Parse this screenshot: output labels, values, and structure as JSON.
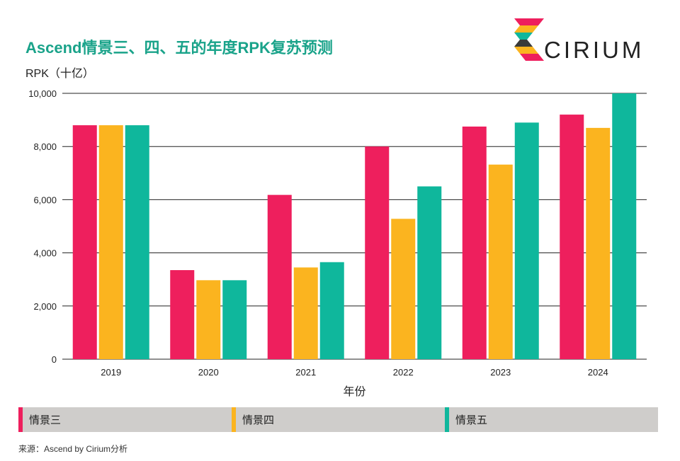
{
  "title": "Ascend情景三、四、五的年度RPK复苏预测",
  "unit_label": "RPK（十亿）",
  "logo": {
    "brand": "CIRIUM",
    "icon": "cirium-logo-icon"
  },
  "source": "来源：Ascend by Cirium分析",
  "colors": {
    "scenario3": "#ee1f5d",
    "scenario4": "#fbb41f",
    "scenario5": "#0fb79c",
    "title": "#1aa38a",
    "legend_bg": "#cfcdcb"
  },
  "chart_data": {
    "type": "bar",
    "title": "Ascend情景三、四、五的年度RPK复苏预测",
    "xlabel": "年份",
    "ylabel": "RPK（十亿）",
    "categories": [
      "2019",
      "2020",
      "2021",
      "2022",
      "2023",
      "2024"
    ],
    "ylim": [
      0,
      10000
    ],
    "yticks": [
      0,
      2000,
      4000,
      6000,
      8000,
      10000
    ],
    "ytick_labels": [
      "0",
      "2,000",
      "4,000",
      "6,000",
      "8,000",
      "10,000"
    ],
    "grid": true,
    "legend_position": "bottom",
    "series": [
      {
        "name": "情景三",
        "values": [
          8800,
          3350,
          6180,
          8000,
          8750,
          9200
        ]
      },
      {
        "name": "情景四",
        "values": [
          8800,
          2970,
          3450,
          5280,
          7320,
          8700
        ]
      },
      {
        "name": "情景五",
        "values": [
          8800,
          2970,
          3650,
          6500,
          8900,
          10000
        ]
      }
    ]
  }
}
